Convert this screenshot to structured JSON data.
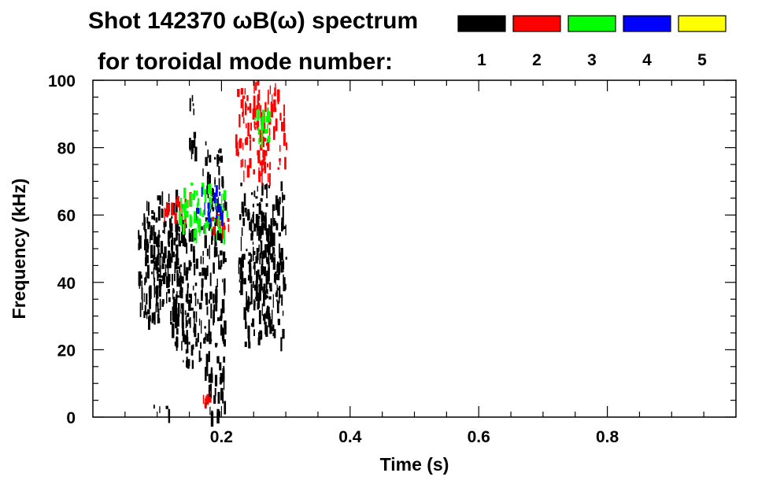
{
  "title_line1": "Shot 142370 ωB(ω) spectrum",
  "title_line2": "for toroidal mode number:",
  "legend": [
    {
      "label": "1",
      "color": "#000000"
    },
    {
      "label": "2",
      "color": "#ff0000"
    },
    {
      "label": "3",
      "color": "#00ff00"
    },
    {
      "label": "4",
      "color": "#0000ff"
    },
    {
      "label": "5",
      "color": "#ffff00"
    }
  ],
  "chart_data": {
    "type": "heatmap",
    "title": "Shot 142370 ωB(ω) spectrum",
    "xlabel": "Time (s)",
    "ylabel": "Frequency (kHz)",
    "xlim": [
      0.0,
      1.0
    ],
    "ylim": [
      0,
      100
    ],
    "xticks": [
      0.2,
      0.4,
      0.6,
      0.8
    ],
    "xtick_labels": [
      "0.2",
      "0.4",
      "0.6",
      "0.8"
    ],
    "yticks": [
      0,
      20,
      40,
      60,
      80,
      100
    ],
    "ytick_labels": [
      "0",
      "20",
      "40",
      "60",
      "80",
      "100"
    ],
    "series": [
      {
        "name": "n=1",
        "color": "#000000",
        "regions": [
          {
            "t": [
              0.07,
              0.14
            ],
            "f": [
              28,
              68
            ]
          },
          {
            "t": [
              0.08,
              0.13
            ],
            "f": [
              40,
              60
            ]
          },
          {
            "t": [
              0.12,
              0.17
            ],
            "f": [
              16,
              58
            ]
          },
          {
            "t": [
              0.17,
              0.205
            ],
            "f": [
              1,
              82
            ]
          },
          {
            "t": [
              0.225,
              0.3
            ],
            "f": [
              22,
              70
            ]
          },
          {
            "t": [
              0.24,
              0.28
            ],
            "f": [
              35,
              62
            ]
          },
          {
            "t": [
              0.09,
              0.12
            ],
            "f": [
              2,
              4
            ]
          },
          {
            "t": [
              0.145,
              0.16
            ],
            "f": [
              80,
              96
            ]
          }
        ]
      },
      {
        "name": "n=2",
        "color": "#ff0000",
        "regions": [
          {
            "t": [
              0.11,
              0.15
            ],
            "f": [
              59,
              67
            ]
          },
          {
            "t": [
              0.18,
              0.21
            ],
            "f": [
              54,
              61
            ]
          },
          {
            "t": [
              0.22,
              0.3
            ],
            "f": [
              72,
              100
            ]
          },
          {
            "t": [
              0.17,
              0.19
            ],
            "f": [
              5,
              8
            ]
          }
        ]
      },
      {
        "name": "n=3",
        "color": "#00ff00",
        "regions": [
          {
            "t": [
              0.13,
              0.21
            ],
            "f": [
              55,
              70
            ]
          },
          {
            "t": [
              0.25,
              0.28
            ],
            "f": [
              82,
              92
            ]
          }
        ]
      },
      {
        "name": "n=4",
        "color": "#0000ff",
        "regions": [
          {
            "t": [
              0.16,
              0.2
            ],
            "f": [
              59,
              69
            ]
          }
        ]
      },
      {
        "name": "n=5",
        "color": "#ffff00",
        "regions": []
      }
    ]
  }
}
